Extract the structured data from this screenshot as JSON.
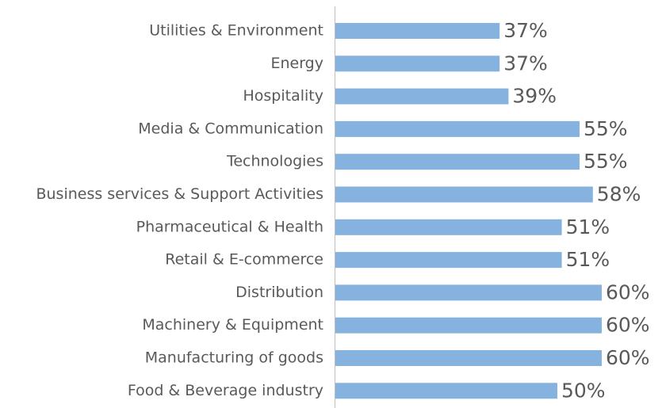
{
  "chart_data": {
    "type": "bar",
    "orientation": "horizontal",
    "categories": [
      "Utilities & Environment",
      "Energy",
      "Hospitality",
      "Media & Communication",
      "Technologies",
      "Business services & Support Activities",
      "Pharmaceutical & Health",
      "Retail & E-commerce",
      "Distribution",
      "Machinery & Equipment",
      "Manufacturing of goods",
      "Food & Beverage industry"
    ],
    "values": [
      37,
      37,
      39,
      55,
      55,
      58,
      51,
      51,
      60,
      60,
      60,
      50
    ],
    "value_labels": [
      "37%",
      "37%",
      "39%",
      "55%",
      "55%",
      "58%",
      "51%",
      "51%",
      "60%",
      "60%",
      "60%",
      "50%"
    ],
    "color": "#85b2df"
  }
}
